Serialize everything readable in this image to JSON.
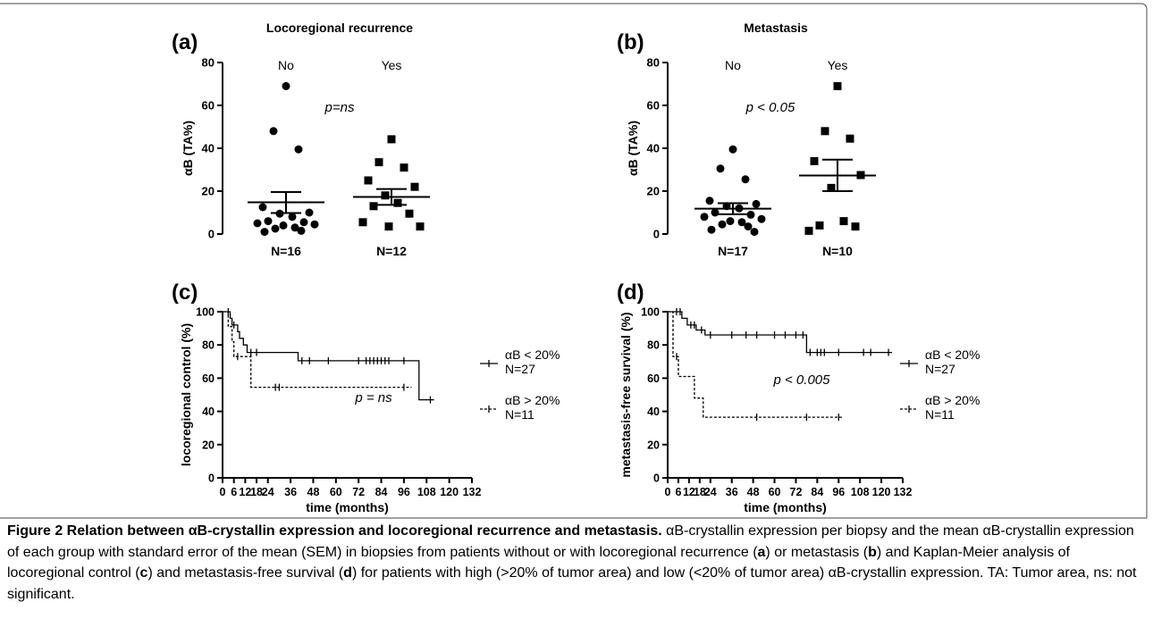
{
  "panels": [
    {
      "id": "a",
      "label": "(a)",
      "chart_data": {
        "type": "scatter",
        "title": "Locoregional recurrence",
        "ylabel": "αB (TA%)",
        "ylim": [
          0,
          80
        ],
        "yticks": [
          "0",
          "20",
          "40",
          "60",
          "80"
        ],
        "annotation": "p=ns",
        "groups": [
          {
            "name": "No",
            "n_label": "N=16",
            "marker": "circle",
            "mean": 14.8,
            "sem_low": 9.8,
            "sem_high": 19.6,
            "values": [
              69.0,
              48.0,
              39.5,
              12.5,
              10.0,
              9.5,
              8.0,
              6.0,
              5.5,
              5.0,
              4.5,
              4.0,
              3.0,
              2.5,
              1.5,
              1.0
            ]
          },
          {
            "name": "Yes",
            "n_label": "N=12",
            "marker": "square",
            "mean": 17.3,
            "sem_low": 13.6,
            "sem_high": 21.0,
            "values": [
              44.2,
              33.5,
              31.0,
              25.0,
              22.0,
              18.0,
              14.5,
              13.0,
              9.5,
              5.5,
              3.5,
              3.5
            ]
          }
        ]
      }
    },
    {
      "id": "b",
      "label": "(b)",
      "chart_data": {
        "type": "scatter",
        "title": "Metastasis",
        "ylabel": "αB (TA%)",
        "ylim": [
          0,
          80
        ],
        "yticks": [
          "0",
          "20",
          "40",
          "60",
          "80"
        ],
        "annotation": "p < 0.05",
        "groups": [
          {
            "name": "No",
            "n_label": "N=17",
            "marker": "circle",
            "mean": 11.8,
            "sem_low": 9.2,
            "sem_high": 14.4,
            "values": [
              39.5,
              30.5,
              25.5,
              15.5,
              14.0,
              13.0,
              12.0,
              10.0,
              9.0,
              8.0,
              7.0,
              6.0,
              5.5,
              4.5,
              3.5,
              2.0,
              1.0
            ]
          },
          {
            "name": "Yes",
            "n_label": "N=10",
            "marker": "square",
            "mean": 27.3,
            "sem_low": 20.0,
            "sem_high": 34.7,
            "values": [
              69.0,
              48.0,
              44.5,
              34.0,
              27.5,
              21.5,
              6.0,
              4.0,
              3.5,
              1.5
            ]
          }
        ]
      }
    },
    {
      "id": "c",
      "label": "(c)",
      "chart_data": {
        "type": "line",
        "xlabel": "time (months)",
        "ylabel": "locoregional control (%)",
        "xlim": [
          0,
          132
        ],
        "ylim": [
          0,
          100
        ],
        "xticks": [
          "0",
          "6",
          "12",
          "18",
          "24",
          "36",
          "48",
          "60",
          "72",
          "84",
          "96",
          "108",
          "120",
          "132"
        ],
        "yticks": [
          "0",
          "20",
          "40",
          "60",
          "80",
          "100"
        ],
        "annotation": "p = ns",
        "series": [
          {
            "name": "αB < 20%",
            "n_label": "N=27",
            "style": "solid",
            "steps": [
              [
                0,
                100
              ],
              [
                4,
                100
              ],
              [
                4,
                96
              ],
              [
                5,
                96
              ],
              [
                5,
                92
              ],
              [
                8,
                92
              ],
              [
                8,
                88
              ],
              [
                9,
                88
              ],
              [
                9,
                84
              ],
              [
                11,
                84
              ],
              [
                11,
                80
              ],
              [
                13,
                80
              ],
              [
                13,
                75.5
              ],
              [
                40,
                75.5
              ],
              [
                40,
                70.5
              ],
              [
                104,
                70.5
              ],
              [
                104,
                47
              ],
              [
                112,
                47
              ]
            ],
            "censors": [
              [
                3,
                100
              ],
              [
                6,
                92
              ],
              [
                15,
                75.5
              ],
              [
                18,
                75.5
              ],
              [
                42,
                70.5
              ],
              [
                46,
                70.5
              ],
              [
                56,
                70.5
              ],
              [
                72,
                70.5
              ],
              [
                76,
                70.5
              ],
              [
                78,
                70.5
              ],
              [
                80,
                70.5
              ],
              [
                82,
                70.5
              ],
              [
                84,
                70.5
              ],
              [
                86,
                70.5
              ],
              [
                88,
                70.5
              ],
              [
                96,
                70.5
              ],
              [
                110,
                47
              ]
            ]
          },
          {
            "name": "αB > 20%",
            "n_label": "N=11",
            "style": "dashed",
            "steps": [
              [
                0,
                100
              ],
              [
                3,
                100
              ],
              [
                3,
                91
              ],
              [
                5,
                91
              ],
              [
                5,
                82
              ],
              [
                6,
                82
              ],
              [
                6,
                73
              ],
              [
                15,
                73
              ],
              [
                15,
                54.5
              ],
              [
                100,
                54.5
              ]
            ],
            "censors": [
              [
                8,
                73
              ],
              [
                28,
                54.5
              ],
              [
                30,
                54.5
              ],
              [
                96,
                54.5
              ]
            ]
          }
        ]
      }
    },
    {
      "id": "d",
      "label": "(d)",
      "chart_data": {
        "type": "line",
        "xlabel": "time (months)",
        "ylabel": "metastasis-free survival (%)",
        "xlim": [
          0,
          132
        ],
        "ylim": [
          0,
          100
        ],
        "xticks": [
          "0",
          "6",
          "12",
          "18",
          "24",
          "36",
          "48",
          "60",
          "72",
          "84",
          "96",
          "108",
          "120",
          "132"
        ],
        "yticks": [
          "0",
          "20",
          "40",
          "60",
          "80",
          "100"
        ],
        "annotation": "p < 0.005",
        "series": [
          {
            "name": "αB < 20%",
            "n_label": "N=27",
            "style": "solid",
            "steps": [
              [
                0,
                100
              ],
              [
                8,
                100
              ],
              [
                8,
                96
              ],
              [
                11,
                96
              ],
              [
                11,
                92
              ],
              [
                16,
                92
              ],
              [
                16,
                89
              ],
              [
                21,
                89
              ],
              [
                21,
                86
              ],
              [
                78,
                86
              ],
              [
                78,
                75.5
              ],
              [
                126,
                75.5
              ]
            ],
            "censors": [
              [
                5,
                100
              ],
              [
                7,
                100
              ],
              [
                13,
                92
              ],
              [
                15,
                92
              ],
              [
                19,
                89
              ],
              [
                24,
                86
              ],
              [
                36,
                86
              ],
              [
                44,
                86
              ],
              [
                50,
                86
              ],
              [
                60,
                86
              ],
              [
                66,
                86
              ],
              [
                72,
                86
              ],
              [
                76,
                86
              ],
              [
                80,
                75.5
              ],
              [
                84,
                75.5
              ],
              [
                86,
                75.5
              ],
              [
                88,
                75.5
              ],
              [
                96,
                75.5
              ],
              [
                110,
                75.5
              ],
              [
                114,
                75.5
              ],
              [
                124,
                75.5
              ]
            ]
          },
          {
            "name": "αB > 20%",
            "n_label": "N=11",
            "style": "dashed",
            "steps": [
              [
                0,
                100
              ],
              [
                3,
                100
              ],
              [
                3,
                73
              ],
              [
                6,
                73
              ],
              [
                6,
                61
              ],
              [
                15,
                61
              ],
              [
                15,
                48
              ],
              [
                20,
                48
              ],
              [
                20,
                36.5
              ],
              [
                98,
                36.5
              ]
            ],
            "censors": [
              [
                5,
                73
              ],
              [
                50,
                36.5
              ],
              [
                78,
                36.5
              ],
              [
                96,
                36.5
              ]
            ]
          }
        ]
      }
    }
  ],
  "caption": {
    "head": "Figure 2 Relation between αB-crystallin expression and locoregional recurrence and metastasis.",
    "body_1": " αB-crystallin expression per biopsy and the mean αB-crystallin expression of each group with standard error of the mean (SEM) in biopsies from patients without or with locoregional recurrence (",
    "ref_a": "a",
    "body_2": ") or metastasis (",
    "ref_b": "b",
    "body_3": ") and Kaplan-Meier analysis of locoregional control (",
    "ref_c": "c",
    "body_4": ") and metastasis-free survival (",
    "ref_d": "d",
    "body_5": ") for patients with high (>20% of tumor area) and low (<20% of tumor area) αB-crystallin expression. TA: Tumor area, ns: not significant."
  }
}
